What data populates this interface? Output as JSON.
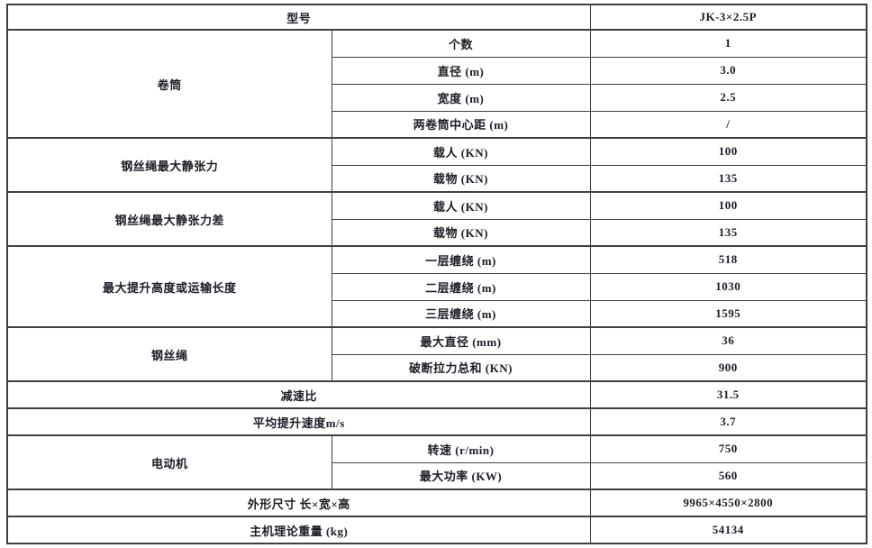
{
  "table": {
    "header": {
      "label": "型号",
      "value": "JK-3×2.5P"
    },
    "sections": [
      {
        "type": "group",
        "category": "卷筒",
        "rows": [
          {
            "param": "个数",
            "value": "1"
          },
          {
            "param": "直径 (m)",
            "value": "3.0"
          },
          {
            "param": "宽度 (m)",
            "value": "2.5"
          },
          {
            "param": "两卷筒中心距 (m)",
            "value": "/"
          }
        ]
      },
      {
        "type": "group",
        "category": "钢丝绳最大静张力",
        "rows": [
          {
            "param": "载人 (KN)",
            "value": "100"
          },
          {
            "param": "载物 (KN)",
            "value": "135"
          }
        ]
      },
      {
        "type": "group",
        "category": "钢丝绳最大静张力差",
        "rows": [
          {
            "param": "载人 (KN)",
            "value": "100"
          },
          {
            "param": "载物 (KN)",
            "value": "135"
          }
        ]
      },
      {
        "type": "group",
        "category": "最大提升高度或运输长度",
        "rows": [
          {
            "param": "一层缠绕 (m)",
            "value": "518"
          },
          {
            "param": "二层缠绕 (m)",
            "value": "1030"
          },
          {
            "param": "三层缠绕 (m)",
            "value": "1595"
          }
        ]
      },
      {
        "type": "group",
        "category": "钢丝绳",
        "rows": [
          {
            "param": "最大直径 (mm)",
            "value": "36"
          },
          {
            "param": "破断拉力总和 (KN)",
            "value": "900"
          }
        ]
      },
      {
        "type": "full",
        "label": "减速比",
        "value": "31.5"
      },
      {
        "type": "full",
        "label": "平均提升速度m/s",
        "value": "3.7"
      },
      {
        "type": "group",
        "category": "电动机",
        "rows": [
          {
            "param": "转速 (r/min)",
            "value": "750"
          },
          {
            "param": "最大功率 (KW)",
            "value": "560"
          }
        ]
      },
      {
        "type": "full",
        "label": "外形尺寸 长×宽×高",
        "value": "9965×4550×2800"
      },
      {
        "type": "full",
        "label": "主机理论重量 (kg)",
        "value": "54134"
      }
    ]
  }
}
